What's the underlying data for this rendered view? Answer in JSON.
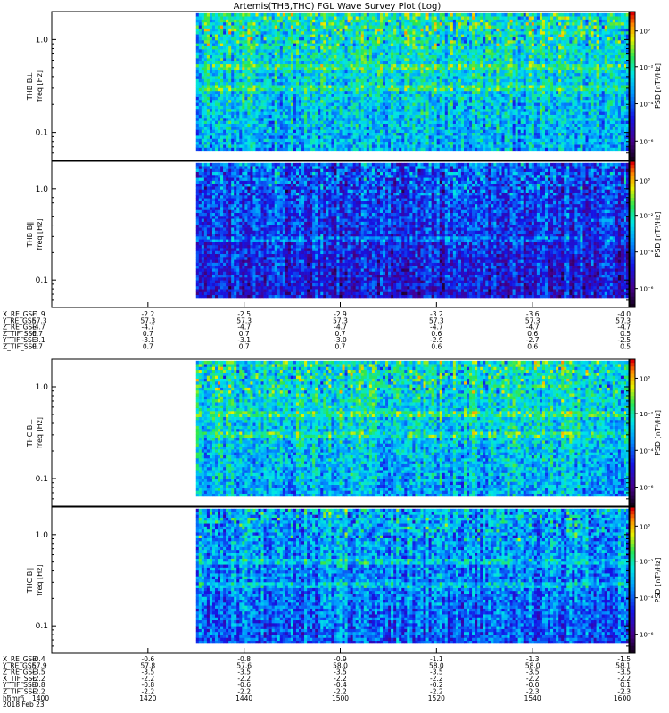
{
  "title": "Artemis(THB,THC) FGL Wave Survey Plot (Log)",
  "chart_data": [
    {
      "type": "heatmap",
      "ylabel_probe": "THB B⊥",
      "ylabel_unit": "freq [Hz]",
      "yticks": [
        "1.0",
        "0.1"
      ],
      "colorbar_label": "PSD [nT²/Hz]",
      "colorbar_ticks": [
        "10°",
        "10⁻²",
        "10⁻⁴",
        "10⁻⁶"
      ],
      "yscale": "log",
      "ylim": [
        0.05,
        2.0
      ],
      "data_start_fraction": 0.1,
      "intensity": "high",
      "bright_band_freqs_hz": [
        0.3,
        0.5
      ]
    },
    {
      "type": "heatmap",
      "ylabel_probe": "THB B∥",
      "ylabel_unit": "freq [Hz]",
      "yticks": [
        "1.0",
        "0.1"
      ],
      "colorbar_label": "PSD [nT²/Hz]",
      "colorbar_ticks": [
        "10°",
        "10⁻²",
        "10⁻⁴",
        "10⁻⁶"
      ],
      "yscale": "log",
      "ylim": [
        0.05,
        2.0
      ],
      "data_start_fraction": 0.1,
      "intensity": "low",
      "bright_band_freqs_hz": [
        0.28
      ]
    },
    {
      "type": "heatmap",
      "ylabel_probe": "THC B⊥",
      "ylabel_unit": "freq [Hz]",
      "yticks": [
        "1.0",
        "0.1"
      ],
      "colorbar_label": "PSD [nT²/Hz]",
      "colorbar_ticks": [
        "10°",
        "10⁻²",
        "10⁻⁴",
        "10⁻⁶"
      ],
      "yscale": "log",
      "ylim": [
        0.05,
        2.0
      ],
      "data_start_fraction": 0.1,
      "intensity": "high",
      "bright_band_freqs_hz": [
        0.3,
        0.5
      ]
    },
    {
      "type": "heatmap",
      "ylabel_probe": "THC B∥",
      "ylabel_unit": "freq [Hz]",
      "yticks": [
        "1.0",
        "0.1"
      ],
      "colorbar_label": "PSD [nT²/Hz]",
      "colorbar_ticks": [
        "10°",
        "10⁻²",
        "10⁻⁴",
        "10⁻⁶"
      ],
      "yscale": "log",
      "ylim": [
        0.05,
        2.0
      ],
      "data_start_fraction": 0.1,
      "intensity": "medium",
      "bright_band_freqs_hz": [
        0.5,
        0.28
      ]
    }
  ],
  "ephemeris_top": {
    "rows": [
      {
        "label": "X_RE_GSE",
        "values": [
          "-1.9",
          "-2.2",
          "-2.5",
          "-2.9",
          "-3.2",
          "-3.6",
          "-4.0"
        ]
      },
      {
        "label": "Y_RE_GSE",
        "values": [
          "57.3",
          "57.3",
          "57.3",
          "57.3",
          "57.3",
          "57.3",
          "57.3"
        ]
      },
      {
        "label": "Z_RE_GSE",
        "values": [
          "-4.7",
          "-4.7",
          "-4.7",
          "-4.7",
          "-4.7",
          "-4.7",
          "-4.7"
        ]
      },
      {
        "label": "Z_TIF_SSE",
        "values": [
          "0.7",
          "0.7",
          "0.7",
          "0.7",
          "0.6",
          "0.6",
          "0.5"
        ]
      },
      {
        "label": "Y_TIF_SSE",
        "values": [
          "-3.1",
          "-3.1",
          "-3.1",
          "-3.0",
          "-2.9",
          "-2.7",
          "-2.5"
        ]
      },
      {
        "label": "Z_TIF_SSE",
        "values": [
          "0.7",
          "0.7",
          "0.7",
          "0.7",
          "0.6",
          "0.6",
          "0.5"
        ]
      }
    ]
  },
  "ephemeris_bottom": {
    "rows": [
      {
        "label": "X_RE_GSE",
        "values": [
          "-0.4",
          "-0.6",
          "-0.8",
          "-0.9",
          "-1.1",
          "-1.3",
          "-1.5"
        ]
      },
      {
        "label": "Y_RE_GSE",
        "values": [
          "57.9",
          "57.8",
          "57.6",
          "58.0",
          "58.0",
          "58.0",
          "58.1"
        ]
      },
      {
        "label": "Z_RE_GSE",
        "values": [
          "-3.5",
          "-3.5",
          "-3.5",
          "-3.5",
          "-3.5",
          "-3.5",
          "-3.5"
        ]
      },
      {
        "label": "X_TIF_SSE",
        "values": [
          "-2.2",
          "-2.2",
          "-2.2",
          "-2.2",
          "-2.2",
          "-2.2",
          "-2.2"
        ]
      },
      {
        "label": "Y_TIF_SSE",
        "values": [
          "-0.8",
          "-0.8",
          "-0.6",
          "-0.4",
          "-0.2",
          "-0.0",
          "0.1"
        ]
      },
      {
        "label": "Z_TIF_SSE",
        "values": [
          "-2.2",
          "-2.2",
          "-2.2",
          "-2.2",
          "-2.2",
          "-2.3",
          "-2.3"
        ]
      }
    ],
    "time_label": "hhmm",
    "time_values": [
      "1400",
      "1420",
      "1440",
      "1500",
      "1520",
      "1540",
      "1600"
    ],
    "date": "2018 Feb 23"
  }
}
